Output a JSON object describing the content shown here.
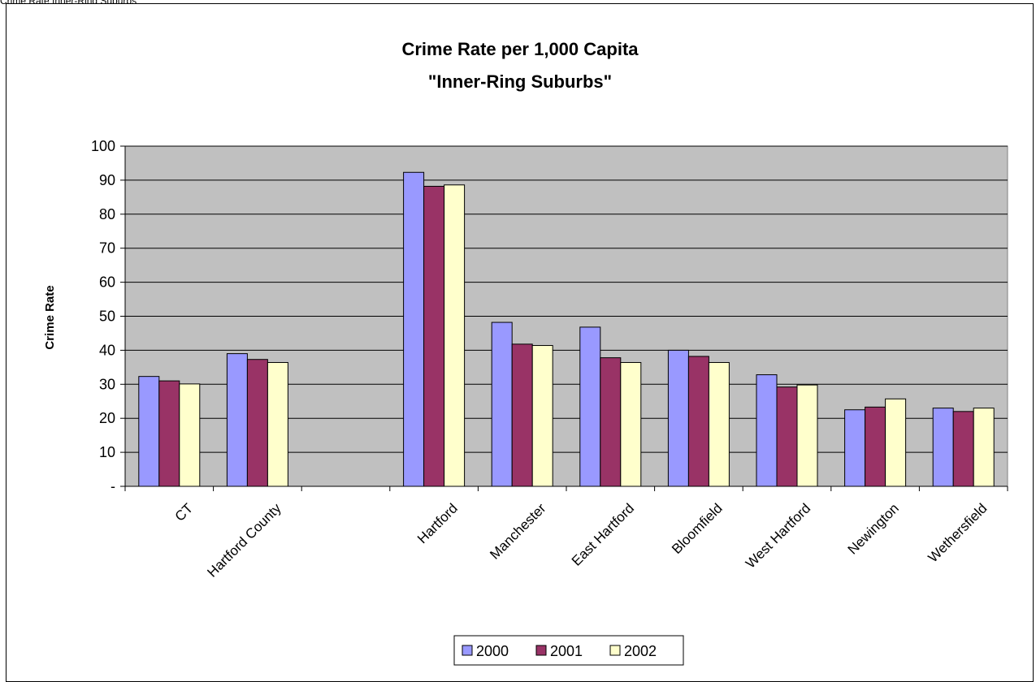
{
  "header": {
    "caption": "Crime Rate Inner-Ring Suburbs"
  },
  "chart_data": {
    "type": "bar",
    "title_line1": "Crime Rate per 1,000 Capita",
    "title_line2": "\"Inner-Ring Suburbs\"",
    "ylabel": "Crime Rate",
    "xlabel": "",
    "ylim": [
      0,
      100
    ],
    "y_ticks": [
      "-",
      "10",
      "20",
      "30",
      "40",
      "50",
      "60",
      "70",
      "80",
      "90",
      "100"
    ],
    "grid": true,
    "legend_position": "bottom-center",
    "categories": [
      "CT",
      "Hartford County",
      "",
      "Hartford",
      "Manchester",
      "East Hartford",
      "Bloomfield",
      "West Hartford",
      "Newington",
      "Wethersfield"
    ],
    "series": [
      {
        "name": "2000",
        "color": "#9999FF",
        "values": [
          32.3,
          39.0,
          null,
          92.3,
          48.2,
          46.8,
          40.0,
          32.8,
          22.5,
          23.0
        ]
      },
      {
        "name": "2001",
        "color": "#993366",
        "values": [
          31.0,
          37.3,
          null,
          88.2,
          41.8,
          37.8,
          38.2,
          29.2,
          23.3,
          22.0
        ]
      },
      {
        "name": "2002",
        "color": "#FFFFCC",
        "values": [
          30.1,
          36.4,
          null,
          88.6,
          41.4,
          36.4,
          36.4,
          29.8,
          25.7,
          23.0
        ]
      }
    ],
    "plot_background": "#C0C0C0"
  }
}
